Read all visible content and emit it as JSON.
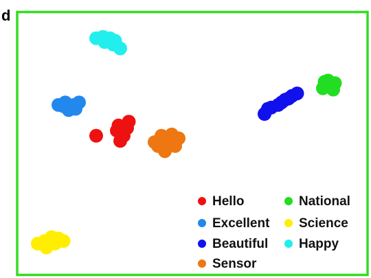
{
  "panel_label": "d",
  "frame_color": "#33dd22",
  "chart_data": {
    "type": "scatter",
    "title": "",
    "xlabel": "",
    "ylabel": "",
    "grid": false,
    "axes_visible": false,
    "legend_position": "bottom-right",
    "xlim": [
      0,
      100
    ],
    "ylim": [
      0,
      100
    ],
    "series": [
      {
        "name": "Hello",
        "color": "#ee1111",
        "points": [
          [
            22.0,
            53.0
          ],
          [
            28.0,
            55.0
          ],
          [
            29.0,
            51.0
          ],
          [
            31.0,
            56.0
          ],
          [
            31.5,
            58.5
          ],
          [
            30.0,
            53.0
          ],
          [
            28.5,
            57.0
          ]
        ]
      },
      {
        "name": "National",
        "color": "#22dd22",
        "points": [
          [
            88.0,
            71.5
          ],
          [
            89.5,
            74.5
          ],
          [
            91.0,
            71.0
          ],
          [
            90.0,
            72.5
          ],
          [
            88.5,
            74.0
          ],
          [
            91.5,
            73.5
          ]
        ]
      },
      {
        "name": "Excellent",
        "color": "#2288ee",
        "points": [
          [
            11.0,
            65.0
          ],
          [
            13.0,
            66.0
          ],
          [
            15.5,
            65.0
          ],
          [
            17.0,
            66.0
          ],
          [
            14.0,
            63.0
          ],
          [
            16.0,
            63.5
          ],
          [
            12.5,
            64.5
          ]
        ]
      },
      {
        "name": "Science",
        "color": "#ffee00",
        "points": [
          [
            5.0,
            11.0
          ],
          [
            7.0,
            12.0
          ],
          [
            9.0,
            13.5
          ],
          [
            11.0,
            13.0
          ],
          [
            7.5,
            9.5
          ],
          [
            10.0,
            11.0
          ],
          [
            12.5,
            12.0
          ]
        ]
      },
      {
        "name": "Beautiful",
        "color": "#1111ee",
        "points": [
          [
            71.0,
            61.5
          ],
          [
            73.0,
            64.0
          ],
          [
            75.0,
            65.0
          ],
          [
            77.0,
            67.0
          ],
          [
            79.0,
            68.5
          ],
          [
            80.5,
            69.5
          ],
          [
            72.0,
            63.5
          ],
          [
            76.0,
            66.0
          ],
          [
            78.0,
            67.5
          ]
        ]
      },
      {
        "name": "Happy",
        "color": "#22eeee",
        "points": [
          [
            22.0,
            91.0
          ],
          [
            24.0,
            91.5
          ],
          [
            26.0,
            91.0
          ],
          [
            27.0,
            88.5
          ],
          [
            29.0,
            87.0
          ],
          [
            24.5,
            89.5
          ],
          [
            27.5,
            90.0
          ]
        ]
      },
      {
        "name": "Sensor",
        "color": "#ee7711",
        "points": [
          [
            39.0,
            50.5
          ],
          [
            41.0,
            53.0
          ],
          [
            44.0,
            53.5
          ],
          [
            46.0,
            52.0
          ],
          [
            45.0,
            49.0
          ],
          [
            42.0,
            47.0
          ],
          [
            40.0,
            49.0
          ],
          [
            43.0,
            50.0
          ]
        ]
      }
    ]
  }
}
